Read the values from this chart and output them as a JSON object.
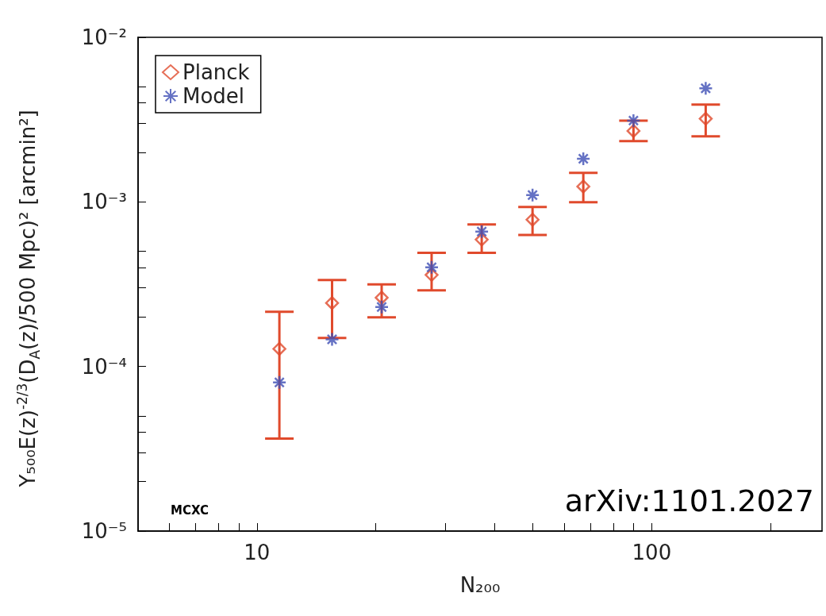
{
  "chart_data": {
    "type": "scatter",
    "xlabel": "N₂₀₀",
    "ylabel": "Y₅₀₀E(z)$^{-2/3}$(D$_{A}$(z)/500 Mpc)² [arcmin²]",
    "annotations": [
      "MCXC",
      "arXiv:1101.2027"
    ],
    "log": "xy",
    "xlim": [
      5,
      270
    ],
    "xticks": [
      {
        "value": 6,
        "label": null
      },
      {
        "value": 7,
        "label": null
      },
      {
        "value": 8,
        "label": null
      },
      {
        "value": 9,
        "label": null
      },
      {
        "value": 10,
        "label": "10"
      },
      {
        "value": 20,
        "label": null
      },
      {
        "value": 30,
        "label": null
      },
      {
        "value": 40,
        "label": null
      },
      {
        "value": 50,
        "label": null
      },
      {
        "value": 60,
        "label": null
      },
      {
        "value": 70,
        "label": null
      },
      {
        "value": 80,
        "label": null
      },
      {
        "value": 90,
        "label": null
      },
      {
        "value": 100,
        "label": "100"
      },
      {
        "value": 200,
        "label": null
      }
    ],
    "ylim": [
      1e-05,
      0.01
    ],
    "yticks": [
      {
        "value": 1e-05,
        "label": "10⁻⁵"
      },
      {
        "value": 2e-05,
        "label": null
      },
      {
        "value": 3e-05,
        "label": null
      },
      {
        "value": 4e-05,
        "label": null
      },
      {
        "value": 5e-05,
        "label": null
      },
      {
        "value": 0.0001,
        "label": "10⁻⁴"
      },
      {
        "value": 0.0002,
        "label": null
      },
      {
        "value": 0.0003,
        "label": null
      },
      {
        "value": 0.0004,
        "label": null
      },
      {
        "value": 0.0005,
        "label": null
      },
      {
        "value": 0.001,
        "label": "10⁻³"
      },
      {
        "value": 0.002,
        "label": null
      },
      {
        "value": 0.003,
        "label": null
      },
      {
        "value": 0.004,
        "label": null
      },
      {
        "value": 0.005,
        "label": null
      },
      {
        "value": 0.01,
        "label": "10⁻²"
      }
    ],
    "legend": "top left",
    "series": [
      {
        "name": "Planck",
        "color": "#e04a2c",
        "marker": "diamond",
        "x": [
          11.4,
          15.5,
          20.7,
          27.7,
          37.1,
          49.9,
          67.1,
          89.9,
          137
        ],
        "values": [
          0.000128,
          0.000243,
          0.000262,
          0.00036,
          0.00059,
          0.00078,
          0.00124,
          0.0027,
          0.0032
        ],
        "errors": [
          [
            3.65e-05,
            0.000215
          ],
          [
            0.000149,
            0.000335
          ],
          [
            0.000199,
            0.000315
          ],
          [
            0.00029,
            0.00049
          ],
          [
            0.00049,
            0.00073
          ],
          [
            0.00063,
            0.00093
          ],
          [
            0.000995,
            0.0015
          ],
          [
            0.00234,
            0.00312
          ],
          [
            0.0025,
            0.0039
          ]
        ]
      },
      {
        "name": "Model",
        "color": "#3f4fb5",
        "marker": "cross",
        "x": [
          11.4,
          15.5,
          20.7,
          27.7,
          37.1,
          49.9,
          67.1,
          89.9,
          137
        ],
        "values": [
          8e-05,
          0.000146,
          0.00023,
          0.0004,
          0.00066,
          0.0011,
          0.00183,
          0.00312,
          0.0049
        ]
      }
    ]
  }
}
